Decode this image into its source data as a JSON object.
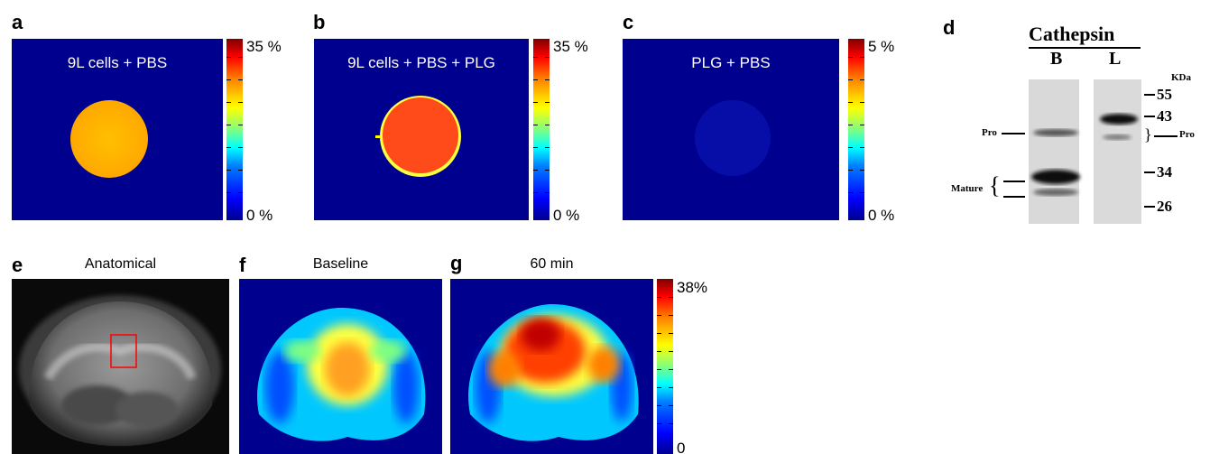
{
  "panels": {
    "a": {
      "letter": "a",
      "caption": "9L cells + PBS",
      "scale_max": "35 %",
      "scale_min": "0 %"
    },
    "b": {
      "letter": "b",
      "caption": "9L cells + PBS + PLG",
      "scale_max": "35 %",
      "scale_min": "0 %"
    },
    "c": {
      "letter": "c",
      "caption": "PLG + PBS",
      "scale_max": "5 %",
      "scale_min": "0 %"
    },
    "d": {
      "letter": "d",
      "title": "Cathepsin",
      "lane_b": "B",
      "lane_l": "L",
      "unit": "KDa",
      "markers": [
        "55",
        "43",
        "34",
        "26"
      ],
      "label_pro_left": "Pro",
      "label_mature": "Mature",
      "label_pro_right": "Pro"
    },
    "e": {
      "letter": "e",
      "title": "Anatomical"
    },
    "f": {
      "letter": "f",
      "title": "Baseline"
    },
    "g": {
      "letter": "g",
      "title": "60 min",
      "scale_max": "38%",
      "scale_min": "0"
    }
  },
  "colors": {
    "map_background": "#00008f",
    "roi_box": "#ff0000"
  }
}
